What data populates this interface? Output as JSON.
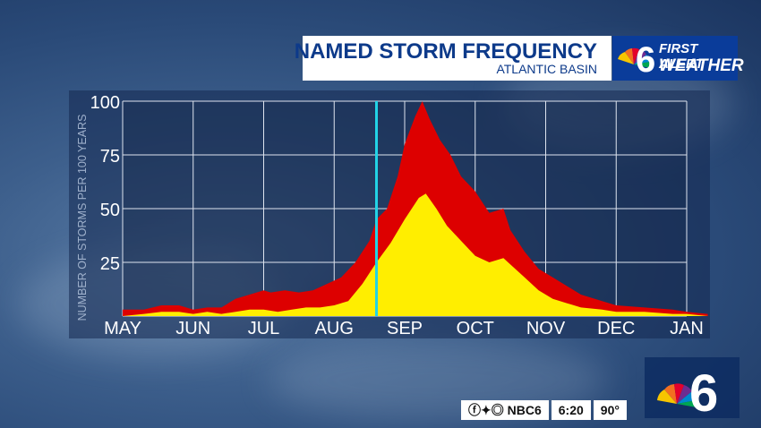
{
  "header": {
    "title": "NAMED STORM FREQUENCY",
    "subtitle": "ATLANTIC BASIN",
    "brand_line1": "FIRST ALERT",
    "brand_line2": "WEATHER",
    "brand_number": "6"
  },
  "ticker": {
    "social": "NBC6",
    "time": "6:20",
    "temp": "90°"
  },
  "colors": {
    "title": "#0d3a8a",
    "brand_bg": "#0a3c9a",
    "outer_series": "#dd0000",
    "inner_series": "#ffee00",
    "marker": "#22d3e6"
  },
  "chart_data": {
    "type": "area",
    "title": "",
    "xlabel": "",
    "ylabel": "NUMBER OF STORMS PER 100 YEARS",
    "ylim": [
      0,
      100
    ],
    "yticks": [
      25,
      50,
      75,
      100
    ],
    "categories": [
      "MAY",
      "JUN",
      "JUL",
      "AUG",
      "SEP",
      "OCT",
      "NOV",
      "DEC",
      "JAN"
    ],
    "grid": true,
    "today_marker_x": 3.6,
    "series": [
      {
        "color": "#dd0000",
        "points": [
          [
            0.0,
            3
          ],
          [
            0.3,
            3
          ],
          [
            0.55,
            5
          ],
          [
            0.8,
            5
          ],
          [
            1.0,
            3
          ],
          [
            1.2,
            4
          ],
          [
            1.4,
            4
          ],
          [
            1.6,
            8
          ],
          [
            1.8,
            10
          ],
          [
            2.0,
            12
          ],
          [
            2.1,
            11
          ],
          [
            2.3,
            12
          ],
          [
            2.5,
            11
          ],
          [
            2.7,
            12
          ],
          [
            2.9,
            15
          ],
          [
            3.1,
            18
          ],
          [
            3.3,
            25
          ],
          [
            3.5,
            35
          ],
          [
            3.6,
            45
          ],
          [
            3.75,
            50
          ],
          [
            3.9,
            65
          ],
          [
            4.0,
            80
          ],
          [
            4.15,
            93
          ],
          [
            4.25,
            100
          ],
          [
            4.35,
            92
          ],
          [
            4.5,
            82
          ],
          [
            4.65,
            75
          ],
          [
            4.8,
            65
          ],
          [
            5.0,
            58
          ],
          [
            5.2,
            48
          ],
          [
            5.4,
            50
          ],
          [
            5.5,
            40
          ],
          [
            5.7,
            30
          ],
          [
            5.9,
            22
          ],
          [
            6.1,
            18
          ],
          [
            6.3,
            14
          ],
          [
            6.5,
            10
          ],
          [
            6.8,
            7
          ],
          [
            7.0,
            5
          ],
          [
            7.4,
            4
          ],
          [
            7.8,
            3
          ],
          [
            8.0,
            2
          ],
          [
            8.3,
            1
          ]
        ]
      },
      {
        "color": "#ffee00",
        "points": [
          [
            0.0,
            0
          ],
          [
            0.3,
            1
          ],
          [
            0.55,
            2
          ],
          [
            0.8,
            2
          ],
          [
            1.0,
            1
          ],
          [
            1.2,
            2
          ],
          [
            1.4,
            1
          ],
          [
            1.6,
            2
          ],
          [
            1.8,
            3
          ],
          [
            2.0,
            3
          ],
          [
            2.2,
            2
          ],
          [
            2.4,
            3
          ],
          [
            2.6,
            4
          ],
          [
            2.8,
            4
          ],
          [
            3.0,
            5
          ],
          [
            3.2,
            7
          ],
          [
            3.4,
            15
          ],
          [
            3.6,
            25
          ],
          [
            3.8,
            34
          ],
          [
            4.0,
            45
          ],
          [
            4.2,
            55
          ],
          [
            4.3,
            57
          ],
          [
            4.45,
            50
          ],
          [
            4.6,
            42
          ],
          [
            4.8,
            35
          ],
          [
            5.0,
            28
          ],
          [
            5.2,
            25
          ],
          [
            5.4,
            27
          ],
          [
            5.5,
            24
          ],
          [
            5.7,
            18
          ],
          [
            5.9,
            12
          ],
          [
            6.1,
            8
          ],
          [
            6.3,
            6
          ],
          [
            6.5,
            4
          ],
          [
            6.8,
            3
          ],
          [
            7.0,
            2
          ],
          [
            7.4,
            2
          ],
          [
            7.8,
            1
          ],
          [
            8.0,
            1
          ],
          [
            8.3,
            0
          ]
        ]
      }
    ]
  }
}
